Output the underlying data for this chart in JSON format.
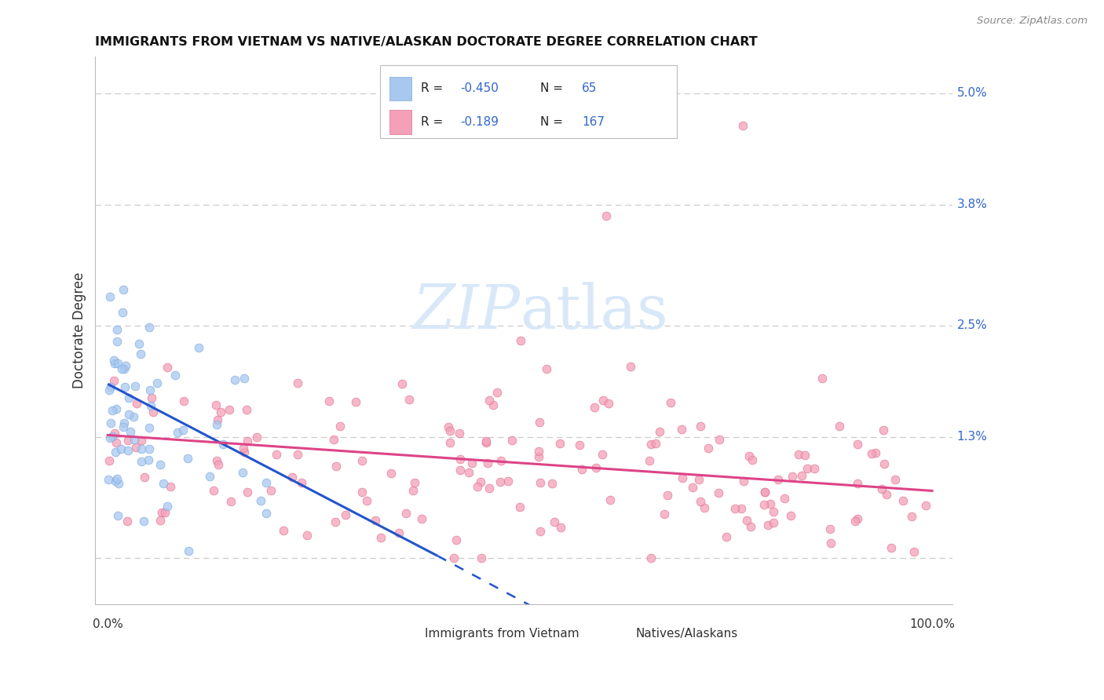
{
  "title": "IMMIGRANTS FROM VIETNAM VS NATIVE/ALASKAN DOCTORATE DEGREE CORRELATION CHART",
  "source": "Source: ZipAtlas.com",
  "ylabel": "Doctorate Degree",
  "color_blue_fill": "#A8C8F0",
  "color_blue_edge": "#7AAAE0",
  "color_pink_fill": "#F4A0B8",
  "color_pink_edge": "#E07090",
  "color_blue_line": "#2255CC",
  "color_pink_line": "#DD4488",
  "color_right_labels": "#3366CC",
  "watermark_color": "#D8E8F8",
  "grid_color": "#CCCCCC",
  "background": "#FFFFFF",
  "n_blue": 65,
  "n_pink": 167,
  "r_blue": -0.45,
  "r_pink": -0.189,
  "seed_blue": 42,
  "seed_pink": 7,
  "right_ytick_pos": [
    1.3,
    2.5,
    3.8,
    5.0
  ],
  "right_ytick_labels": [
    "1.3%",
    "2.5%",
    "3.8%",
    "5.0%"
  ],
  "blue_line_x0": 0.0,
  "blue_line_y0": 1.87,
  "blue_line_x1": 40.0,
  "blue_line_y1": 0.02,
  "blue_dash_x0": 40.0,
  "blue_dash_y0": 0.02,
  "blue_dash_x1": 52.0,
  "blue_dash_y1": -0.55,
  "pink_line_x0": 0.0,
  "pink_line_y0": 1.32,
  "pink_line_x1": 100.0,
  "pink_line_y1": 0.72,
  "xmin": -1.5,
  "xmax": 102.5,
  "ymin": -0.5,
  "ymax": 5.4
}
